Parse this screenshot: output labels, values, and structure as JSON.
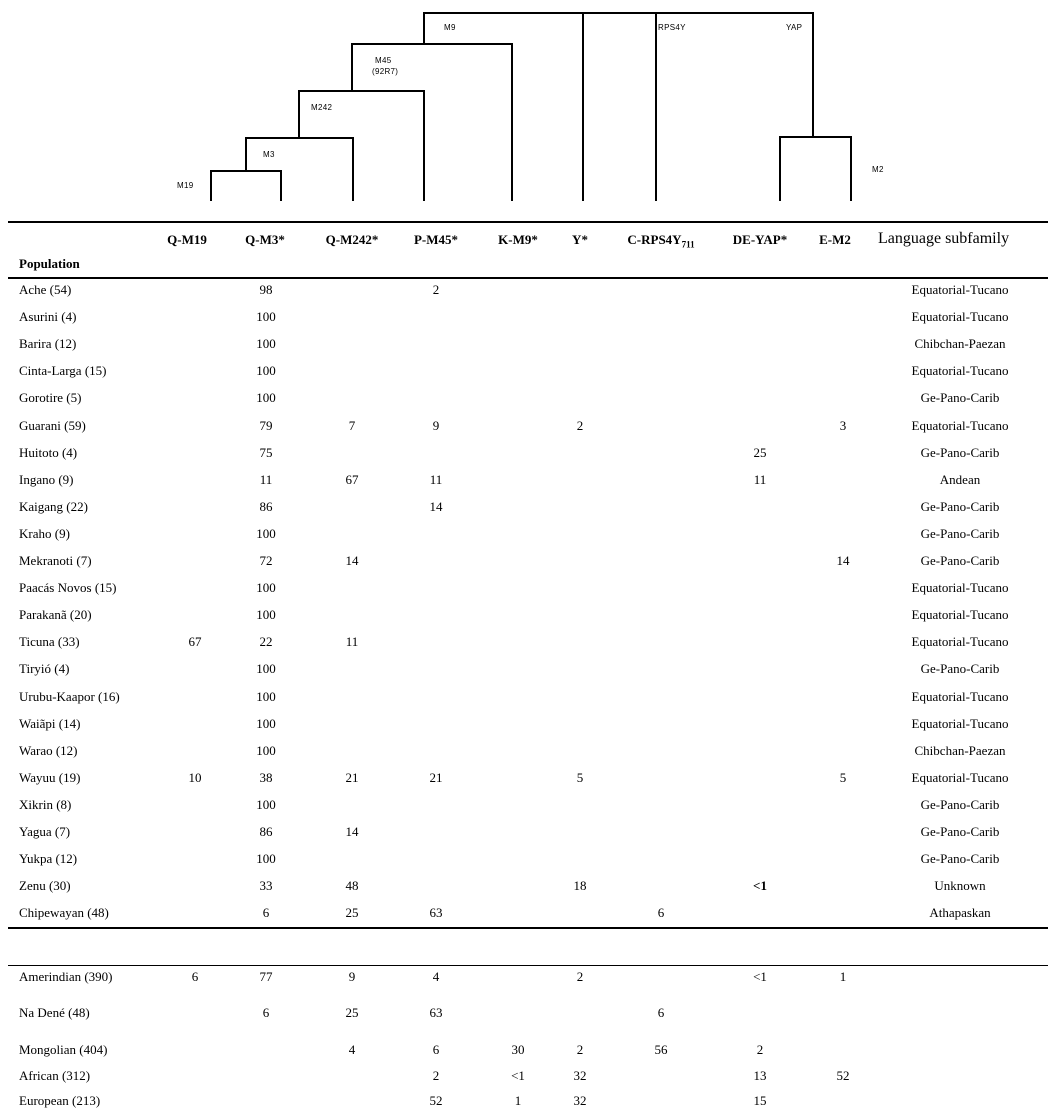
{
  "tree": {
    "labels": {
      "m19": "M19",
      "m3": "M3",
      "m242": "M242",
      "m45": "M45",
      "m45_alt": "(92R7)",
      "m9": "M9",
      "rps4y": "RPS4Y",
      "yap": "YAP",
      "m2": "M2"
    }
  },
  "table": {
    "population_header": "Population",
    "language_header": "Language subfamily",
    "columns": [
      "Q-M19",
      "Q-M3*",
      "Q-M242*",
      "P-M45*",
      "K-M9*",
      "Y*",
      "C-RPS4Y",
      "DE-YAP*",
      "E-M2"
    ],
    "rps4y_subscript": "711",
    "rows": [
      {
        "population": "Ache (54)",
        "values": [
          "",
          "98",
          "",
          "2",
          "",
          "",
          "",
          "",
          ""
        ],
        "language": "Equatorial-Tucano"
      },
      {
        "population": "Asurini (4)",
        "values": [
          "",
          "100",
          "",
          "",
          "",
          "",
          "",
          "",
          ""
        ],
        "language": "Equatorial-Tucano"
      },
      {
        "population": "Barira (12)",
        "values": [
          "",
          "100",
          "",
          "",
          "",
          "",
          "",
          "",
          ""
        ],
        "language": "Chibchan-Paezan"
      },
      {
        "population": "Cinta-Larga (15)",
        "values": [
          "",
          "100",
          "",
          "",
          "",
          "",
          "",
          "",
          ""
        ],
        "language": "Equatorial-Tucano"
      },
      {
        "population": "Gorotire (5)",
        "values": [
          "",
          "100",
          "",
          "",
          "",
          "",
          "",
          "",
          ""
        ],
        "language": "Ge-Pano-Carib"
      },
      {
        "population": "Guarani (59)",
        "values": [
          "",
          "79",
          "7",
          "9",
          "",
          "2",
          "",
          "",
          "3"
        ],
        "language": "Equatorial-Tucano"
      },
      {
        "population": "Huitoto (4)",
        "values": [
          "",
          "75",
          "",
          "",
          "",
          "",
          "",
          "25",
          ""
        ],
        "language": "Ge-Pano-Carib"
      },
      {
        "population": "Ingano (9)",
        "values": [
          "",
          "11",
          "67",
          "11",
          "",
          "",
          "",
          "11",
          ""
        ],
        "language": "Andean"
      },
      {
        "population": "Kaigang (22)",
        "values": [
          "",
          "86",
          "",
          "14",
          "",
          "",
          "",
          "",
          ""
        ],
        "language": "Ge-Pano-Carib"
      },
      {
        "population": "Kraho (9)",
        "values": [
          "",
          "100",
          "",
          "",
          "",
          "",
          "",
          "",
          ""
        ],
        "language": "Ge-Pano-Carib"
      },
      {
        "population": "Mekranoti (7)",
        "values": [
          "",
          "72",
          "14",
          "",
          "",
          "",
          "",
          "",
          "14"
        ],
        "language": "Ge-Pano-Carib"
      },
      {
        "population": "Paacás Novos (15)",
        "values": [
          "",
          "100",
          "",
          "",
          "",
          "",
          "",
          "",
          ""
        ],
        "language": "Equatorial-Tucano"
      },
      {
        "population": "Parakanã (20)",
        "values": [
          "",
          "100",
          "",
          "",
          "",
          "",
          "",
          "",
          ""
        ],
        "language": "Equatorial-Tucano"
      },
      {
        "population": "Ticuna (33)",
        "values": [
          "67",
          "22",
          "11",
          "",
          "",
          "",
          "",
          "",
          ""
        ],
        "language": "Equatorial-Tucano"
      },
      {
        "population": "Tiryió (4)",
        "values": [
          "",
          "100",
          "",
          "",
          "",
          "",
          "",
          "",
          ""
        ],
        "language": "Ge-Pano-Carib"
      },
      {
        "population": "Urubu-Kaapor (16)",
        "values": [
          "",
          "100",
          "",
          "",
          "",
          "",
          "",
          "",
          ""
        ],
        "language": "Equatorial-Tucano"
      },
      {
        "population": "Waiãpi (14)",
        "values": [
          "",
          "100",
          "",
          "",
          "",
          "",
          "",
          "",
          ""
        ],
        "language": "Equatorial-Tucano"
      },
      {
        "population": "Warao (12)",
        "values": [
          "",
          "100",
          "",
          "",
          "",
          "",
          "",
          "",
          ""
        ],
        "language": "Chibchan-Paezan"
      },
      {
        "population": "Wayuu (19)",
        "values": [
          "10",
          "38",
          "21",
          "21",
          "",
          "5",
          "",
          "",
          "5"
        ],
        "language": "Equatorial-Tucano"
      },
      {
        "population": "Xikrin (8)",
        "values": [
          "",
          "100",
          "",
          "",
          "",
          "",
          "",
          "",
          ""
        ],
        "language": "Ge-Pano-Carib"
      },
      {
        "population": "Yagua (7)",
        "values": [
          "",
          "86",
          "14",
          "",
          "",
          "",
          "",
          "",
          ""
        ],
        "language": "Ge-Pano-Carib"
      },
      {
        "population": "Yukpa (12)",
        "values": [
          "",
          "100",
          "",
          "",
          "",
          "",
          "",
          "",
          ""
        ],
        "language": "Ge-Pano-Carib"
      },
      {
        "population": "Zenu (30)",
        "values": [
          "",
          "33",
          "48",
          "",
          "",
          "18",
          "",
          "<1",
          ""
        ],
        "language": "Unknown"
      },
      {
        "population": "Chipewayan (48)",
        "values": [
          "",
          "6",
          "25",
          "63",
          "",
          "",
          "6",
          "",
          ""
        ],
        "language": "Athapaskan"
      }
    ],
    "summary_rows": [
      {
        "population": "Amerindian (390)",
        "values": [
          "6",
          "77",
          "9",
          "4",
          "",
          "2",
          "",
          "<1",
          "1"
        ]
      },
      {
        "population": "Na Dené (48)",
        "values": [
          "",
          "6",
          "25",
          "63",
          "",
          "",
          "6",
          "",
          ""
        ]
      },
      {
        "population": "Mongolian (404)",
        "values": [
          "",
          "",
          "4",
          "6",
          "30",
          "2",
          "56",
          "2",
          ""
        ]
      },
      {
        "population": "African  (312)",
        "values": [
          "",
          "",
          "",
          "2",
          "<1",
          "32",
          "",
          "13",
          "52"
        ]
      },
      {
        "population": "European  (213)",
        "values": [
          "",
          "",
          "",
          "52",
          "1",
          "32",
          "",
          "15",
          ""
        ]
      }
    ]
  }
}
